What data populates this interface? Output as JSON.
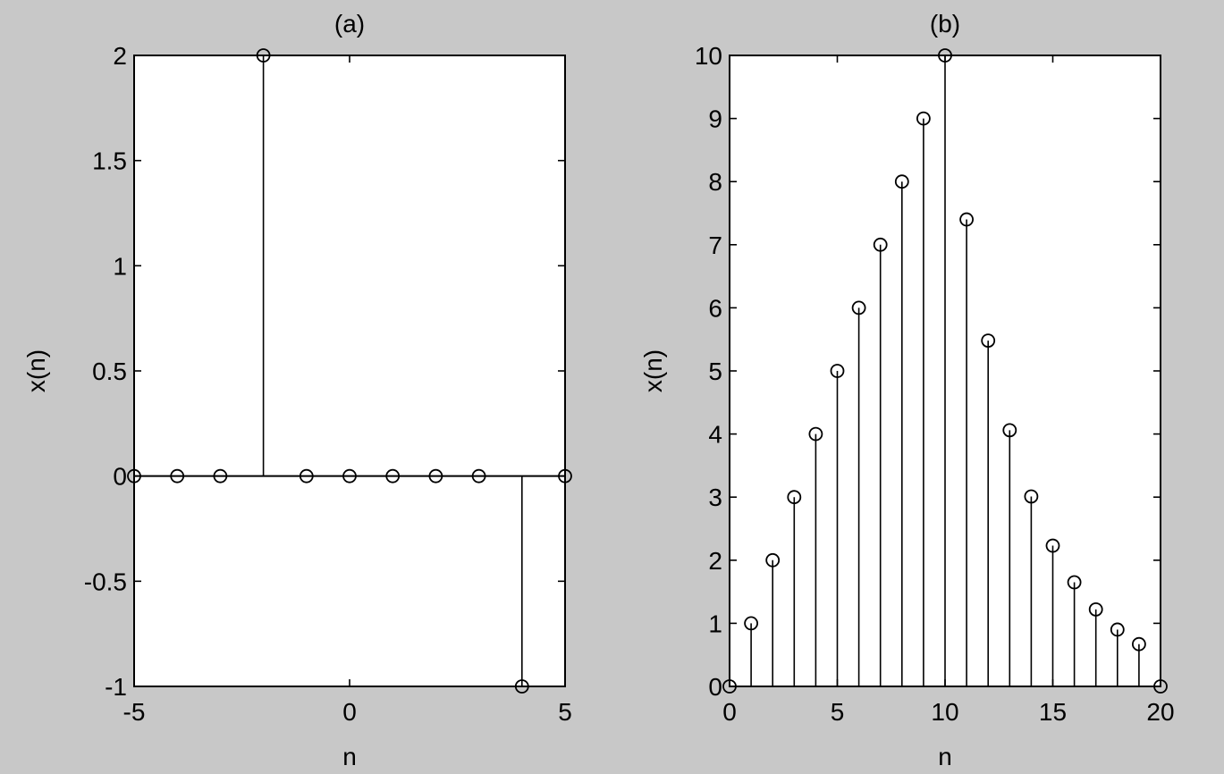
{
  "figure": {
    "background": "#c8c8c8",
    "axes_background": "#ffffff",
    "ink": "#000000"
  },
  "chart_data": [
    {
      "type": "stem",
      "title": "(a)",
      "xlabel": "n",
      "ylabel": "x(n)",
      "xlim": [
        -5,
        5
      ],
      "ylim": [
        -1,
        2
      ],
      "xticks": [
        -5,
        0,
        5
      ],
      "xtick_labels": [
        "-5",
        "0",
        "5"
      ],
      "yticks": [
        -1,
        -0.5,
        0,
        0.5,
        1,
        1.5,
        2
      ],
      "ytick_labels": [
        "-1",
        "-0.5",
        "0",
        "0.5",
        "1",
        "1.5",
        "2"
      ],
      "grid": false,
      "marker": "circle",
      "x": [
        -5,
        -4,
        -3,
        -2,
        -1,
        0,
        1,
        2,
        3,
        4,
        5
      ],
      "values": [
        0,
        0,
        0,
        2,
        0,
        0,
        0,
        0,
        0,
        -1,
        0
      ]
    },
    {
      "type": "stem",
      "title": "(b)",
      "xlabel": "n",
      "ylabel": "x(n)",
      "xlim": [
        0,
        20
      ],
      "ylim": [
        0,
        10
      ],
      "xticks": [
        0,
        5,
        10,
        15,
        20
      ],
      "xtick_labels": [
        "0",
        "5",
        "10",
        "15",
        "20"
      ],
      "yticks": [
        0,
        1,
        2,
        3,
        4,
        5,
        6,
        7,
        8,
        9,
        10
      ],
      "ytick_labels": [
        "0",
        "1",
        "2",
        "3",
        "4",
        "5",
        "6",
        "7",
        "8",
        "9",
        "10"
      ],
      "grid": false,
      "marker": "circle",
      "x": [
        0,
        1,
        2,
        3,
        4,
        5,
        6,
        7,
        8,
        9,
        10,
        11,
        12,
        13,
        14,
        15,
        16,
        17,
        18,
        19,
        20
      ],
      "values": [
        0,
        1,
        2,
        3,
        4,
        5,
        6,
        7,
        8,
        9,
        10,
        7.4,
        5.48,
        4.06,
        3.01,
        2.23,
        1.65,
        1.22,
        0.9,
        0.67,
        0
      ]
    }
  ]
}
